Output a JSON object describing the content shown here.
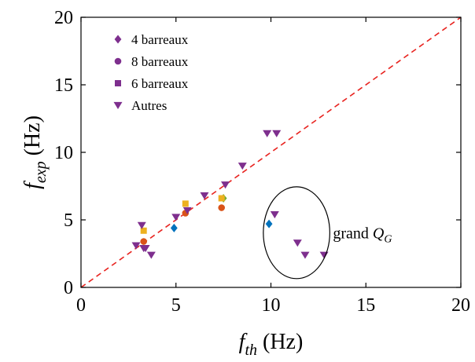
{
  "chart_data": {
    "type": "scatter",
    "title": "",
    "xlabel": {
      "main": "f",
      "sub": "th",
      "unit": " (Hz)"
    },
    "ylabel": {
      "main": "f",
      "sub": "exp",
      "unit": " (Hz)"
    },
    "xlim": [
      0,
      20
    ],
    "ylim": [
      0,
      20
    ],
    "xticks": [
      0,
      5,
      10,
      15,
      20
    ],
    "yticks": [
      0,
      5,
      10,
      15,
      20
    ],
    "grid": false,
    "legend_position": "top-left",
    "reference_line": {
      "type": "y=x",
      "style": "dashed",
      "color": "#e8231f"
    },
    "colors": {
      "purple": "#7e2f8e",
      "blue": "#0072bd",
      "orange": "#d95319",
      "yellow": "#edb120",
      "green": "#77ac30"
    },
    "legend": [
      {
        "label": "4 barreaux",
        "marker": "diamond",
        "color": "#7e2f8e"
      },
      {
        "label": "8 barreaux",
        "marker": "circle",
        "color": "#7e2f8e"
      },
      {
        "label": "6 barreaux",
        "marker": "square",
        "color": "#7e2f8e"
      },
      {
        "label": "Autres",
        "marker": "triangle-down",
        "color": "#7e2f8e"
      }
    ],
    "series": [
      {
        "name": "4 barreaux",
        "marker": "diamond",
        "points": [
          {
            "x": 4.9,
            "y": 4.4,
            "color": "#0072bd"
          },
          {
            "x": 7.5,
            "y": 6.6,
            "color": "#77ac30"
          },
          {
            "x": 9.9,
            "y": 4.7,
            "color": "#0072bd"
          }
        ]
      },
      {
        "name": "8 barreaux",
        "marker": "circle",
        "points": [
          {
            "x": 3.3,
            "y": 3.4,
            "color": "#d95319"
          },
          {
            "x": 5.5,
            "y": 5.5,
            "color": "#d95319"
          },
          {
            "x": 7.4,
            "y": 5.9,
            "color": "#d95319"
          }
        ]
      },
      {
        "name": "6 barreaux",
        "marker": "square",
        "points": [
          {
            "x": 3.3,
            "y": 4.2,
            "color": "#edb120"
          },
          {
            "x": 5.5,
            "y": 6.2,
            "color": "#edb120"
          },
          {
            "x": 7.4,
            "y": 6.6,
            "color": "#edb120"
          }
        ]
      },
      {
        "name": "Autres",
        "marker": "triangle-down",
        "points": [
          {
            "x": 2.9,
            "y": 3.1,
            "color": "#7e2f8e"
          },
          {
            "x": 3.2,
            "y": 4.6,
            "color": "#7e2f8e"
          },
          {
            "x": 3.3,
            "y": 2.9,
            "color": "#7e2f8e"
          },
          {
            "x": 3.4,
            "y": 2.9,
            "color": "#7e2f8e"
          },
          {
            "x": 3.7,
            "y": 2.4,
            "color": "#7e2f8e"
          },
          {
            "x": 5.0,
            "y": 5.2,
            "color": "#7e2f8e"
          },
          {
            "x": 5.6,
            "y": 5.7,
            "color": "#7e2f8e"
          },
          {
            "x": 6.5,
            "y": 6.8,
            "color": "#7e2f8e"
          },
          {
            "x": 7.6,
            "y": 7.6,
            "color": "#7e2f8e"
          },
          {
            "x": 8.5,
            "y": 9.0,
            "color": "#7e2f8e"
          },
          {
            "x": 9.8,
            "y": 11.4,
            "color": "#7e2f8e"
          },
          {
            "x": 10.3,
            "y": 11.4,
            "color": "#7e2f8e"
          },
          {
            "x": 10.2,
            "y": 5.4,
            "color": "#7e2f8e"
          },
          {
            "x": 11.4,
            "y": 3.3,
            "color": "#7e2f8e"
          },
          {
            "x": 11.8,
            "y": 2.4,
            "color": "#7e2f8e"
          },
          {
            "x": 12.8,
            "y": 2.4,
            "color": "#7e2f8e"
          }
        ]
      }
    ],
    "annotation": {
      "text_main": "grand ",
      "text_symbol": "Q",
      "text_sub": "G",
      "ellipse_center": [
        11.35,
        4.05
      ],
      "ellipse_radius": [
        1.75,
        3.4
      ]
    }
  }
}
